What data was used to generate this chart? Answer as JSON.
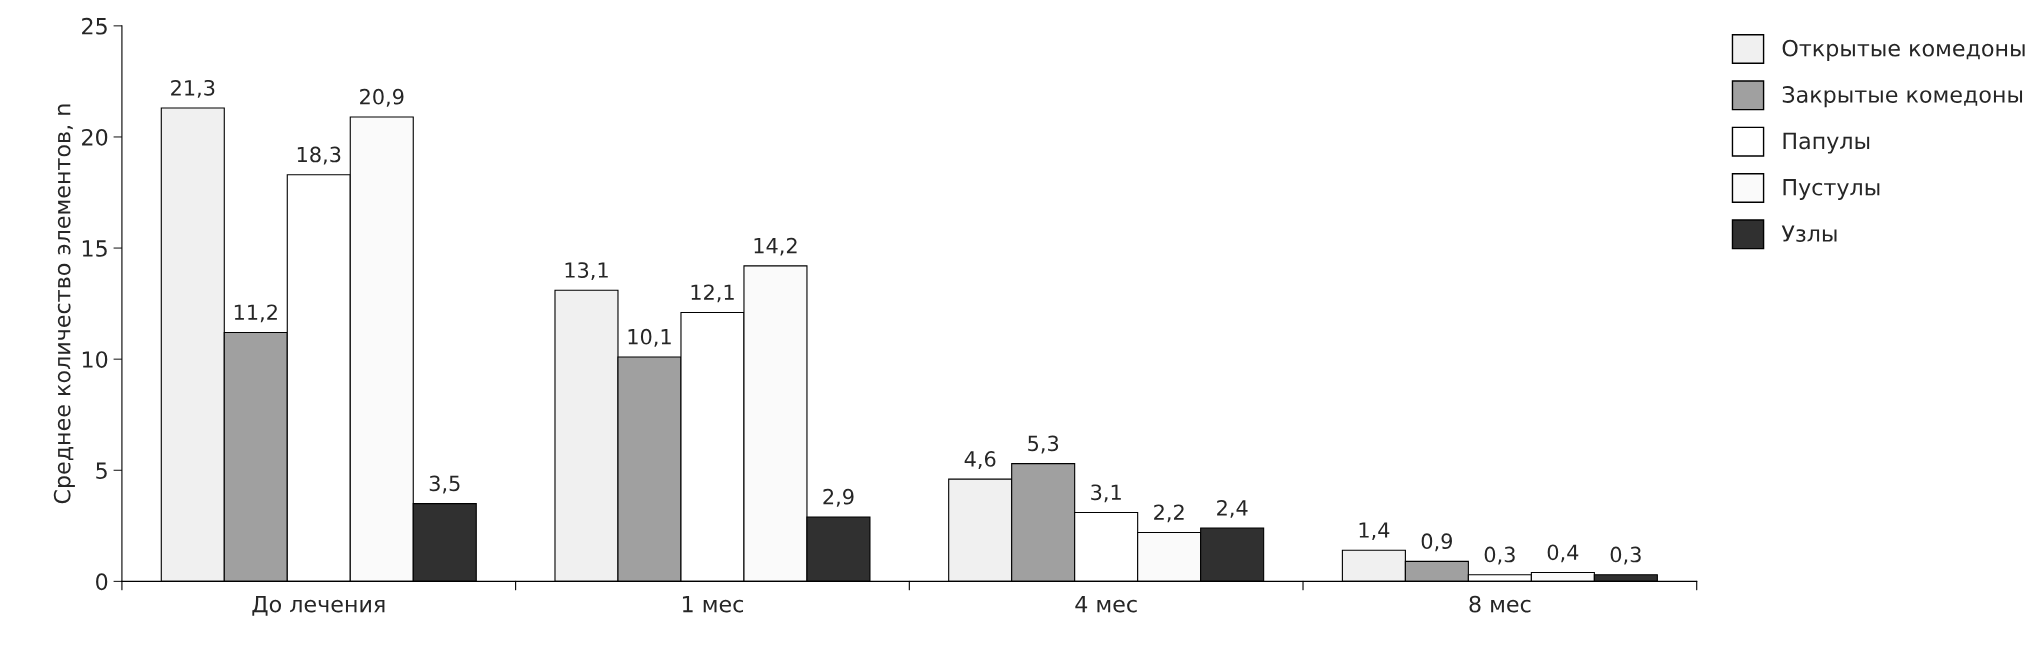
{
  "chart_data": {
    "type": "bar",
    "ylabel": "Среднее количество элементов, n",
    "categories": [
      "До лечения",
      "1 мес",
      "4 мес",
      "8 мес"
    ],
    "ylim": [
      0,
      25
    ],
    "yticks": [
      0,
      5,
      10,
      15,
      20,
      25
    ],
    "grid": false,
    "legend": "top right",
    "series": [
      {
        "name": "Открытые комедоны",
        "color": "#f0f0f0",
        "values": [
          21.3,
          13.1,
          4.6,
          1.4
        ],
        "value_labels": [
          "21,3",
          "13,1",
          "4,6",
          "1,4"
        ]
      },
      {
        "name": "Закрытые комедоны",
        "color": "#a0a0a0",
        "values": [
          11.2,
          10.1,
          5.3,
          0.9
        ],
        "value_labels": [
          "11,2",
          "10,1",
          "5,3",
          "0,9"
        ]
      },
      {
        "name": "Папулы",
        "color": "#ffffff",
        "values": [
          18.3,
          12.1,
          3.1,
          0.3
        ],
        "value_labels": [
          "18,3",
          "12,1",
          "3,1",
          "0,3"
        ]
      },
      {
        "name": "Пустулы",
        "color": "#fafafa",
        "values": [
          20.9,
          14.2,
          2.2,
          0.4
        ],
        "value_labels": [
          "20,9",
          "14,2",
          "2,2",
          "0,4"
        ]
      },
      {
        "name": "Узлы",
        "color": "#303030",
        "values": [
          3.5,
          2.9,
          2.4,
          0.3
        ],
        "value_labels": [
          "3,5",
          "2,9",
          "2,4",
          "0,3"
        ]
      }
    ]
  }
}
